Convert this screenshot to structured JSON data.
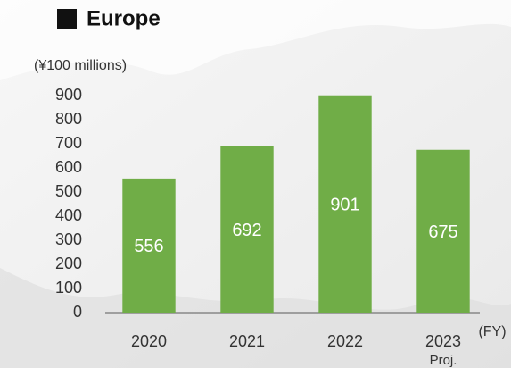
{
  "chart_data": {
    "type": "bar",
    "title": "Europe",
    "unit_label": "(¥100 millions)",
    "x_axis_unit": "(FY)",
    "categories": [
      "2020",
      "2021",
      "2022",
      "2023"
    ],
    "category_sublabels": [
      null,
      null,
      null,
      "Proj."
    ],
    "values": [
      556,
      692,
      901,
      675
    ],
    "color": "#70ad47",
    "ylim": [
      0,
      900
    ],
    "yticks": [
      0,
      100,
      200,
      300,
      400,
      500,
      600,
      700,
      800,
      900
    ],
    "grid": false
  }
}
